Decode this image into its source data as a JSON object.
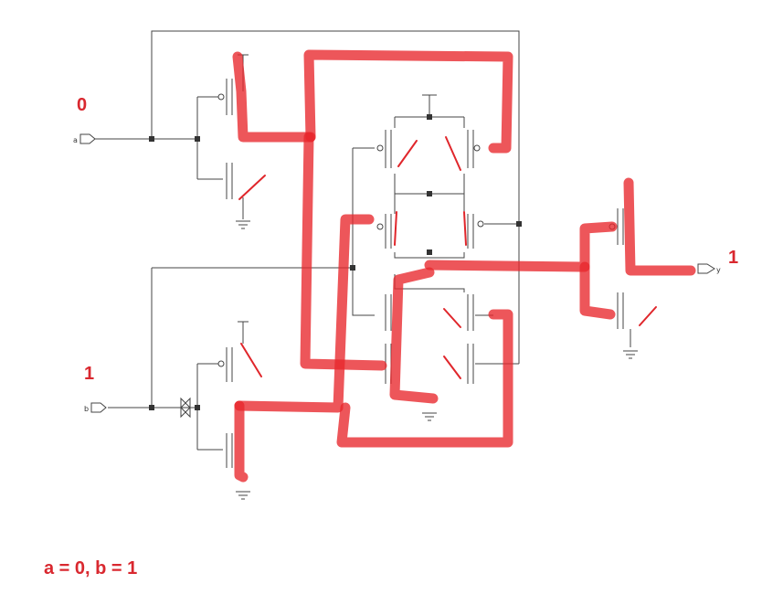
{
  "inputs": [
    {
      "pin": "a",
      "value": "0"
    },
    {
      "pin": "b",
      "value": "1"
    }
  ],
  "output": {
    "pin": "y",
    "value": "1"
  },
  "caption": "a = 0, b = 1",
  "colors": {
    "highlight": "#e8262b",
    "wire": "#444444",
    "text": "#d9282f"
  }
}
